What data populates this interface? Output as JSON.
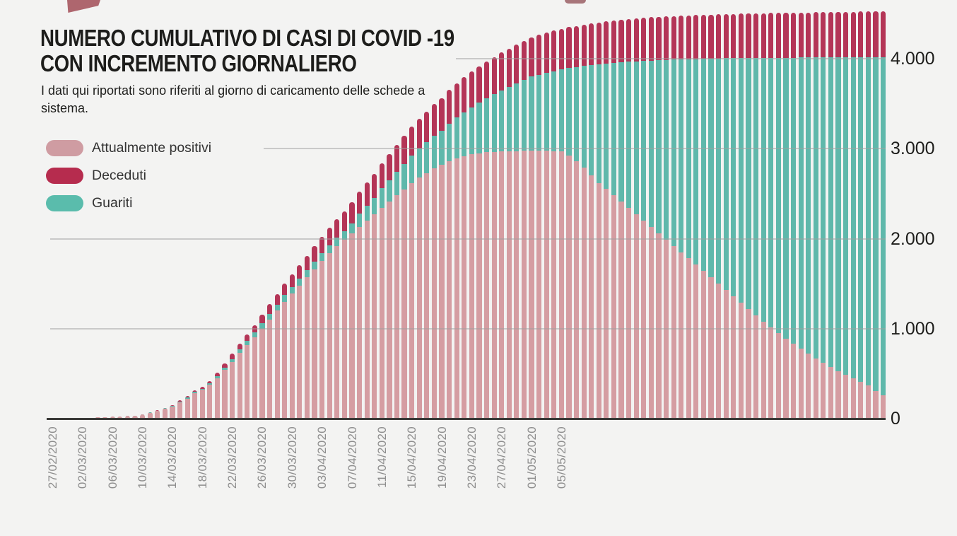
{
  "page": {
    "background": "#f3f3f2"
  },
  "decorations": {
    "corner_flag_color": "#ae666e",
    "top_blob_color": "#8d4b51"
  },
  "header": {
    "title_line1": "NUMERO CUMULATIVO DI CASI DI COVID -19",
    "title_line2": "CON INCREMENTO GIORNALIERO",
    "subtitle": "I dati qui riportati sono riferiti al giorno di caricamento delle schede a sistema."
  },
  "legend": {
    "items": [
      {
        "label": "Attualmente positivi",
        "color": "#cf9ca2"
      },
      {
        "label": "Deceduti",
        "color": "#b62c4e"
      },
      {
        "label": "Guariti",
        "color": "#5abcac"
      }
    ]
  },
  "chart_data": {
    "type": "bar",
    "stacked": true,
    "title": "NUMERO CUMULATIVO DI CASI DI COVID -19 CON INCREMENTO GIORNALIERO",
    "n_bars": 112,
    "x_tick_every_n_bars": 4,
    "x_tick_labels": [
      "27/02/2020",
      "02/03/2020",
      "06/03/2020",
      "10/03/2020",
      "14/03/2020",
      "18/03/2020",
      "22/03/2020",
      "26/03/2020",
      "30/03/2020",
      "03/04/2020",
      "07/04/2020",
      "11/04/2020",
      "15/04/2020",
      "19/04/2020",
      "23/04/2020",
      "27/04/2020",
      "01/05/2020",
      "05/05/2020"
    ],
    "yticks": [
      "0",
      "1.000",
      "2.000",
      "3.000",
      "4.000"
    ],
    "ytick_values": [
      0,
      1000,
      2000,
      3000,
      4000
    ],
    "ylim": [
      0,
      4600
    ],
    "grid": true,
    "legend_position": "top-left",
    "stack_order_bottom_to_top": [
      "Attualmente positivi",
      "Guariti",
      "Deceduti"
    ],
    "series": [
      {
        "name": "Attualmente positivi",
        "color": "#d59da2",
        "values": [
          1,
          1,
          2,
          3,
          5,
          8,
          12,
          18,
          24,
          20,
          28,
          30,
          44,
          64,
          85,
          108,
          135,
          180,
          222,
          280,
          320,
          380,
          450,
          540,
          630,
          730,
          815,
          900,
          1000,
          1100,
          1200,
          1300,
          1390,
          1480,
          1570,
          1660,
          1750,
          1840,
          1920,
          1990,
          2060,
          2130,
          2200,
          2270,
          2340,
          2410,
          2480,
          2550,
          2620,
          2680,
          2730,
          2780,
          2820,
          2860,
          2890,
          2915,
          2935,
          2950,
          2960,
          2965,
          2970,
          2972,
          2974,
          2975,
          2976,
          2976,
          2975,
          2973,
          2970,
          2920,
          2860,
          2790,
          2700,
          2620,
          2550,
          2480,
          2410,
          2340,
          2270,
          2200,
          2130,
          2060,
          1990,
          1920,
          1850,
          1780,
          1710,
          1640,
          1570,
          1500,
          1430,
          1360,
          1290,
          1220,
          1150,
          1080,
          1010,
          950,
          890,
          830,
          775,
          720,
          670,
          620,
          575,
          530,
          490,
          450,
          410,
          370,
          310,
          260
        ]
      },
      {
        "name": "Guariti",
        "color": "#5fb8ab",
        "values": [
          0,
          0,
          0,
          0,
          0,
          0,
          0,
          0,
          0,
          0,
          2,
          2,
          2,
          3,
          5,
          6,
          7,
          12,
          15,
          16,
          12,
          14,
          20,
          26,
          32,
          40,
          48,
          56,
          62,
          66,
          69,
          72,
          75,
          78,
          80,
          83,
          86,
          89,
          92,
          96,
          110,
          150,
          165,
          180,
          220,
          240,
          260,
          280,
          300,
          320,
          340,
          360,
          380,
          420,
          455,
          490,
          525,
          560,
          600,
          640,
          680,
          716,
          752,
          788,
          824,
          846,
          868,
          889,
          910,
          975,
          1045,
          1128,
          1230,
          1318,
          1395,
          1472,
          1550,
          1625,
          1700,
          1775,
          1850,
          1923,
          1996,
          2069,
          2142,
          2214,
          2286,
          2358,
          2430,
          2502,
          2574,
          2645,
          2716,
          2787,
          2858,
          2929,
          3000,
          3060,
          3121,
          3181,
          3237,
          3292,
          3343,
          3393,
          3439,
          3484,
          3525,
          3565,
          3606,
          3646,
          3706,
          3756
        ]
      },
      {
        "name": "Deceduti",
        "color": "#b43557",
        "values": [
          0,
          0,
          0,
          0,
          0,
          0,
          0,
          0,
          0,
          0,
          1,
          2,
          2,
          4,
          5,
          6,
          9,
          12,
          15,
          18,
          22,
          26,
          42,
          50,
          58,
          66,
          75,
          85,
          95,
          105,
          115,
          126,
          137,
          148,
          160,
          172,
          184,
          196,
          208,
          220,
          232,
          244,
          256,
          268,
          280,
          291,
          302,
          313,
          324,
          334,
          344,
          354,
          363,
          372,
          380,
          388,
          395,
          402,
          408,
          414,
          420,
          425,
          430,
          434,
          438,
          442,
          446,
          449,
          452,
          455,
          458,
          461,
          464,
          466,
          468,
          470,
          472,
          474,
          476,
          478,
          480,
          482,
          483,
          484,
          486,
          487,
          488,
          489,
          490,
          491,
          492,
          493,
          494,
          495,
          496,
          497,
          497,
          498,
          498,
          499,
          500,
          501,
          502,
          503,
          504,
          505,
          506,
          507,
          508,
          509,
          510,
          512
        ]
      }
    ]
  }
}
